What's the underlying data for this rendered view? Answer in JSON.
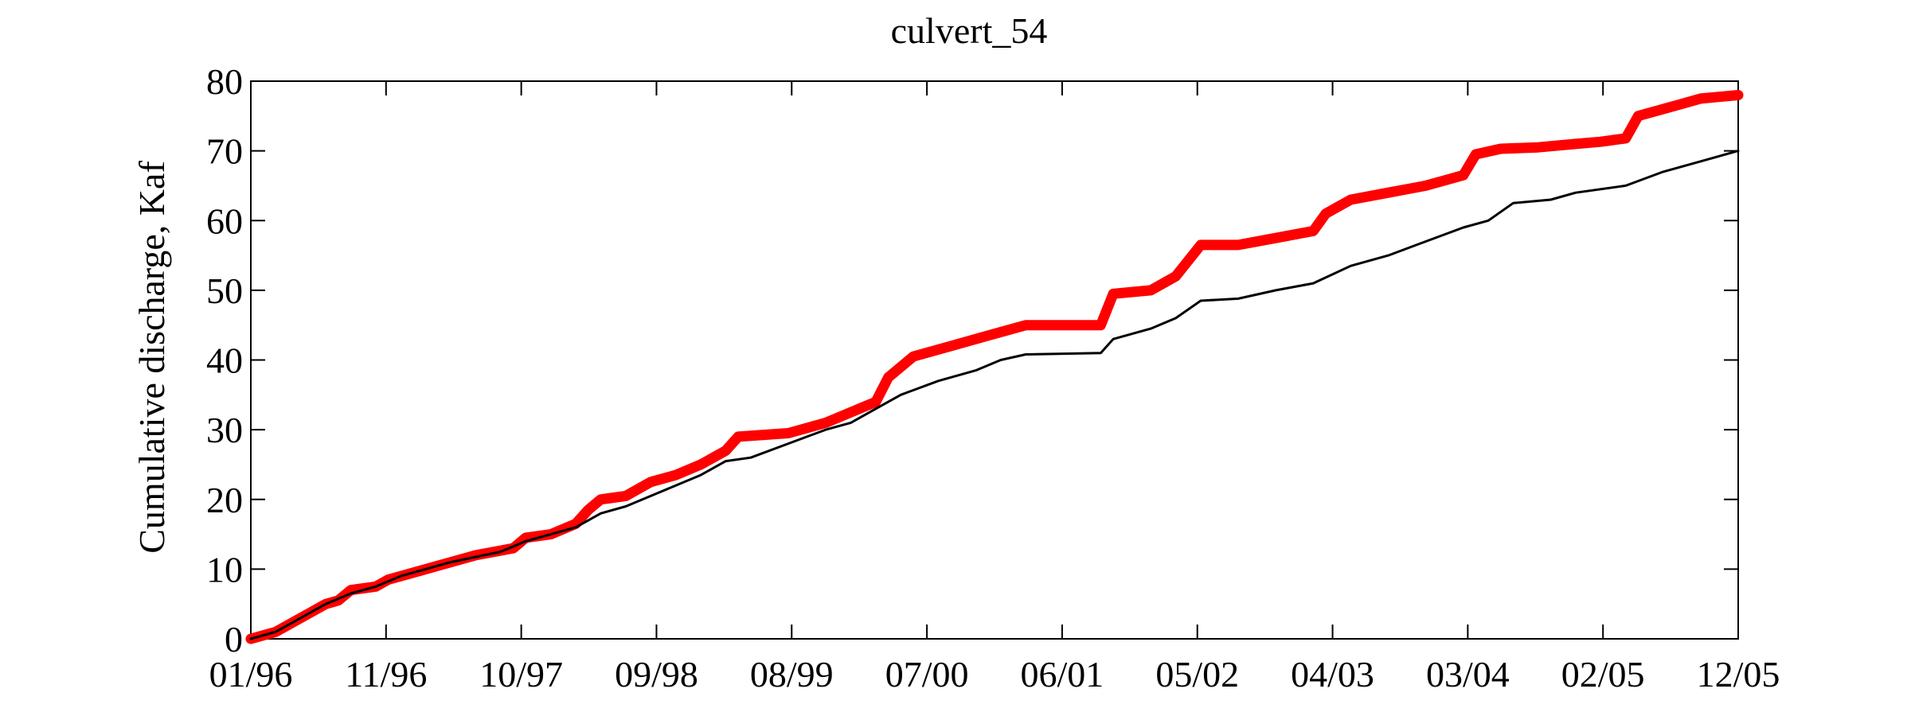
{
  "chart_data": {
    "type": "line",
    "title": "culvert_54",
    "xlabel": "",
    "ylabel": "Cumulative discharge, Kaf",
    "xlim": [
      "1996-01",
      "2005-12"
    ],
    "ylim": [
      0,
      80
    ],
    "xticks": [
      "01/96",
      "11/96",
      "10/97",
      "09/98",
      "08/99",
      "07/00",
      "06/01",
      "05/02",
      "04/03",
      "03/04",
      "02/05",
      "12/05"
    ],
    "yticks": [
      "0",
      "10",
      "20",
      "30",
      "40",
      "50",
      "60",
      "70",
      "80"
    ],
    "grid": false,
    "legend": "none",
    "series": [
      {
        "color": "#ff0000",
        "points": [
          [
            "1996-01",
            0
          ],
          [
            "1996-03",
            1
          ],
          [
            "1996-05",
            3
          ],
          [
            "1996-07",
            5
          ],
          [
            "1996-08",
            5.5
          ],
          [
            "1996-09",
            7
          ],
          [
            "1996-11",
            7.5
          ],
          [
            "1996-12",
            8.5
          ],
          [
            "1997-02",
            9.5
          ],
          [
            "1997-05",
            11
          ],
          [
            "1997-07",
            12
          ],
          [
            "1997-10",
            13
          ],
          [
            "1997-11",
            14.5
          ],
          [
            "1998-01",
            15
          ],
          [
            "1998-03",
            16.5
          ],
          [
            "1998-04",
            18.5
          ],
          [
            "1998-05",
            20
          ],
          [
            "1998-07",
            20.5
          ],
          [
            "1998-09",
            22.5
          ],
          [
            "1998-11",
            23.5
          ],
          [
            "1999-01",
            25
          ],
          [
            "1999-03",
            27
          ],
          [
            "1999-04",
            29
          ],
          [
            "1999-08",
            29.5
          ],
          [
            "1999-11",
            31
          ],
          [
            "2000-01",
            32.5
          ],
          [
            "2000-03",
            34
          ],
          [
            "2000-04",
            37.5
          ],
          [
            "2000-06",
            40.5
          ],
          [
            "2000-09",
            42
          ],
          [
            "2000-12",
            43.5
          ],
          [
            "2001-03",
            45
          ],
          [
            "2001-07",
            45
          ],
          [
            "2001-09",
            45
          ],
          [
            "2001-10",
            49.5
          ],
          [
            "2002-01",
            50
          ],
          [
            "2002-03",
            52
          ],
          [
            "2002-05",
            56.5
          ],
          [
            "2002-08",
            56.5
          ],
          [
            "2002-11",
            57.5
          ],
          [
            "2003-02",
            58.5
          ],
          [
            "2003-03",
            61
          ],
          [
            "2003-05",
            63
          ],
          [
            "2003-08",
            64
          ],
          [
            "2003-11",
            65
          ],
          [
            "2004-02",
            66.5
          ],
          [
            "2004-03",
            69.5
          ],
          [
            "2004-05",
            70.3
          ],
          [
            "2004-08",
            70.5
          ],
          [
            "2004-11",
            71
          ],
          [
            "2005-01",
            71.3
          ],
          [
            "2005-03",
            71.8
          ],
          [
            "2005-04",
            75
          ],
          [
            "2005-07",
            76.5
          ],
          [
            "2005-09",
            77.5
          ],
          [
            "2005-12",
            78
          ]
        ]
      },
      {
        "color": "#000000",
        "points": [
          [
            "1996-01",
            0
          ],
          [
            "1996-03",
            1
          ],
          [
            "1996-05",
            3
          ],
          [
            "1996-07",
            5
          ],
          [
            "1996-09",
            6.5
          ],
          [
            "1996-11",
            7.5
          ],
          [
            "1997-01",
            9
          ],
          [
            "1997-05",
            11
          ],
          [
            "1997-09",
            12.5
          ],
          [
            "1997-11",
            14
          ],
          [
            "1998-03",
            16
          ],
          [
            "1998-05",
            18
          ],
          [
            "1998-07",
            19
          ],
          [
            "1998-09",
            20.5
          ],
          [
            "1998-11",
            22
          ],
          [
            "1999-01",
            23.5
          ],
          [
            "1999-03",
            25.5
          ],
          [
            "1999-05",
            26
          ],
          [
            "1999-08",
            28
          ],
          [
            "1999-11",
            30
          ],
          [
            "2000-01",
            31
          ],
          [
            "2000-03",
            33
          ],
          [
            "2000-05",
            35
          ],
          [
            "2000-08",
            37
          ],
          [
            "2000-11",
            38.5
          ],
          [
            "2001-01",
            40
          ],
          [
            "2001-03",
            40.8
          ],
          [
            "2001-09",
            41
          ],
          [
            "2001-10",
            43
          ],
          [
            "2002-01",
            44.5
          ],
          [
            "2002-03",
            46
          ],
          [
            "2002-05",
            48.5
          ],
          [
            "2002-08",
            48.8
          ],
          [
            "2002-11",
            50
          ],
          [
            "2003-02",
            51
          ],
          [
            "2003-05",
            53.5
          ],
          [
            "2003-08",
            55
          ],
          [
            "2003-11",
            57
          ],
          [
            "2004-02",
            59
          ],
          [
            "2004-04",
            60
          ],
          [
            "2004-06",
            62.5
          ],
          [
            "2004-09",
            63
          ],
          [
            "2004-11",
            64
          ],
          [
            "2005-03",
            65
          ],
          [
            "2005-06",
            67
          ],
          [
            "2005-09",
            68.5
          ],
          [
            "2005-12",
            70
          ]
        ]
      }
    ]
  }
}
